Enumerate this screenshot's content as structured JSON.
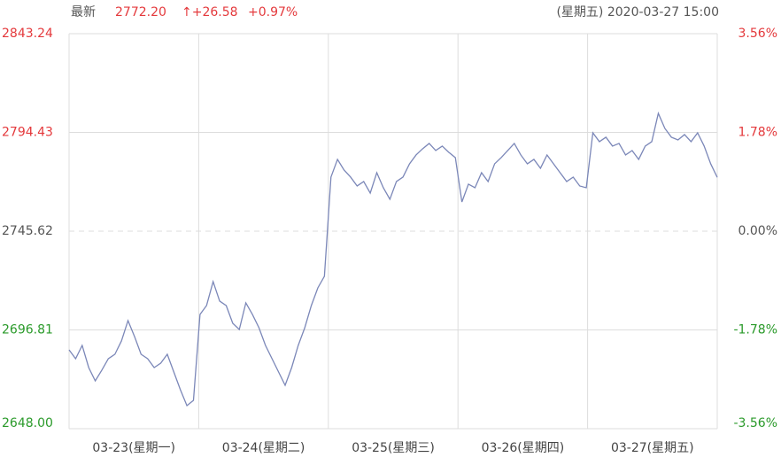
{
  "header": {
    "label": "最新",
    "price": "2772.20",
    "change": "↑+26.58",
    "percent": "+0.97%",
    "time": "(星期五) 2020-03-27 15:00"
  },
  "chart_data": {
    "type": "line",
    "color": "#7b87b8",
    "up_color": "#e4393c",
    "down_color": "#2a9a2a",
    "flat_color": "#555555",
    "grid": true,
    "days": [
      {
        "label": "03-23(星期一)",
        "values": [
          2686.97,
          2682.59,
          2689.16,
          2678.21,
          2671.64,
          2676.9,
          2682.59,
          2684.78,
          2691.35,
          2701.42,
          2693.53,
          2684.78,
          2682.59,
          2678.21,
          2680.4,
          2684.78,
          2676.02,
          2667.26,
          2659.38,
          2662.01
        ]
      },
      {
        "label": "03-24(星期二)",
        "values": [
          2704.48,
          2708.86,
          2720.68,
          2711.05,
          2708.86,
          2700.1,
          2697.04,
          2710.17,
          2704.48,
          2697.91,
          2689.16,
          2682.59,
          2676.02,
          2669.45,
          2678.21,
          2689.16,
          2697.91,
          2708.86,
          2717.61,
          2723.31
        ]
      },
      {
        "label": "03-25(星期三)",
        "values": [
          2772.34,
          2781.1,
          2775.85,
          2772.34,
          2767.96,
          2770.15,
          2764.46,
          2774.53,
          2767.09,
          2761.4,
          2770.15,
          2772.34,
          2778.91,
          2783.29,
          2786.35,
          2788.98,
          2785.48,
          2787.67,
          2784.6,
          2781.98
        ]
      },
      {
        "label": "03-26(星期四)",
        "values": [
          2760.08,
          2768.84,
          2767.09,
          2774.53,
          2770.15,
          2778.91,
          2781.98,
          2785.48,
          2788.98,
          2783.29,
          2778.91,
          2781.1,
          2776.72,
          2783.29,
          2778.91,
          2774.53,
          2770.15,
          2772.34,
          2767.96,
          2767.09
        ]
      },
      {
        "label": "03-27(星期五)",
        "values": [
          2794.23,
          2789.86,
          2792.05,
          2787.67,
          2788.98,
          2783.29,
          2785.48,
          2781.1,
          2787.67,
          2789.86,
          2803.87,
          2796.42,
          2792.05,
          2790.73,
          2793.36,
          2789.86,
          2794.23,
          2787.67,
          2778.91,
          2772.2
        ]
      }
    ],
    "ylim": [
      2648,
      2843.24
    ],
    "yticks": [
      {
        "value": 2648,
        "label": "2648.00"
      },
      2696.81,
      2745.62,
      2794.43,
      2843.24
    ],
    "y2lim": [
      -3.56,
      3.56
    ],
    "y2ticks": [
      {
        "value": -3.56,
        "label": "-3.56%"
      },
      {
        "value": -1.78,
        "label": "-1.78%"
      },
      {
        "value": 0,
        "label": "0.00%"
      },
      {
        "value": 1.78,
        "label": "1.78%"
      },
      {
        "value": 3.56,
        "label": "3.56%"
      }
    ]
  }
}
